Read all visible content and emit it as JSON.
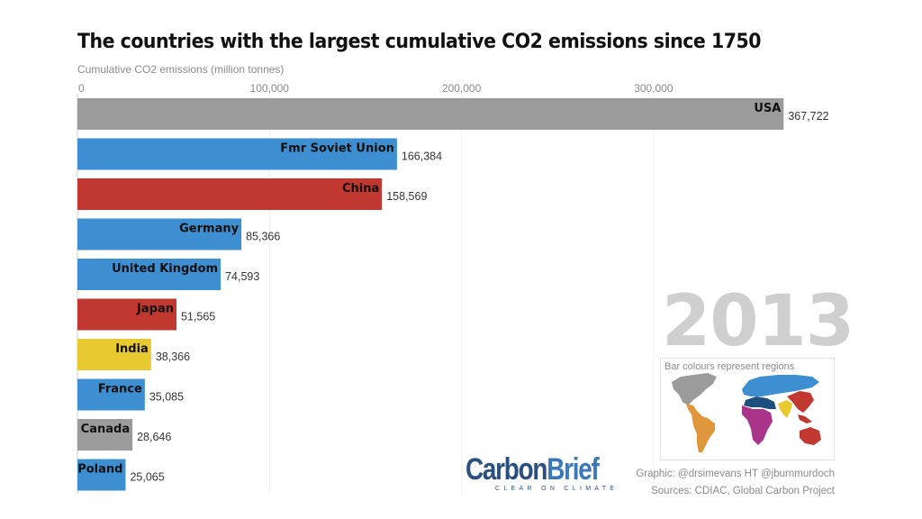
{
  "title": "The countries with the largest cumulative CO2 emissions since 1750",
  "subtitle": "Cumulative CO2 emissions (million tonnes)",
  "year": "2013",
  "legend": {
    "caption": "Bar colours represent regions",
    "regions": [
      {
        "name": "North America",
        "color": "#9b9b9b"
      },
      {
        "name": "Latin America",
        "color": "#e0963a"
      },
      {
        "name": "Europe & Eurasia",
        "color": "#3d8fd1"
      },
      {
        "name": "Middle East & North Africa",
        "color": "#1e4f7f"
      },
      {
        "name": "Sub-Saharan Africa",
        "color": "#a8358a"
      },
      {
        "name": "South Asia",
        "color": "#e8c930"
      },
      {
        "name": "East Asia & Pacific",
        "color": "#c0382f"
      }
    ]
  },
  "logo": {
    "part1": "Carbon",
    "part2": "Brief",
    "tagline": "CLEAR ON CLIMATE"
  },
  "credits": {
    "graphic": "Graphic: @drsimevans HT @jburnmurdoch",
    "sources": "Sources: CDIAC, Global Carbon Project"
  },
  "chart_data": {
    "type": "bar",
    "orientation": "horizontal",
    "title": "The countries with the largest cumulative CO2 emissions since 1750",
    "xlabel": "Cumulative CO2 emissions (million tonnes)",
    "ylabel": "",
    "xlim": [
      0,
      368000
    ],
    "xticks": [
      0,
      100000,
      200000,
      300000
    ],
    "xtick_labels": [
      "0",
      "100,000",
      "200,000",
      "300,000"
    ],
    "grid": true,
    "categories": [
      "USA",
      "Fmr Soviet Union",
      "China",
      "Germany",
      "United Kingdom",
      "Japan",
      "India",
      "France",
      "Canada",
      "Poland"
    ],
    "values": [
      367722,
      166384,
      158569,
      85366,
      74593,
      51565,
      38366,
      35085,
      28646,
      25065
    ],
    "value_labels": [
      "367,722",
      "166,384",
      "158,569",
      "85,366",
      "74,593",
      "51,565",
      "38,366",
      "35,085",
      "28,646",
      "25,065"
    ],
    "colors": [
      "#9b9b9b",
      "#3d8fd1",
      "#c0382f",
      "#3d8fd1",
      "#3d8fd1",
      "#c0382f",
      "#e8c930",
      "#3d8fd1",
      "#9b9b9b",
      "#3d8fd1"
    ],
    "annotation": "2013"
  }
}
